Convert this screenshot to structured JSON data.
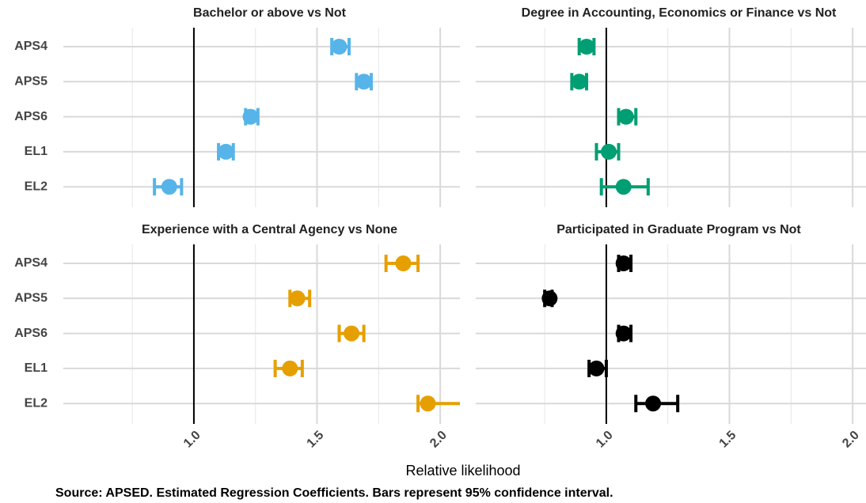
{
  "chart_data": [
    {
      "type": "dotwhisker",
      "title": "Bachelor or above vs Not",
      "color": "#56B4E9",
      "categories": [
        "APS4",
        "APS5",
        "APS6",
        "EL1",
        "EL2"
      ],
      "values": [
        1.59,
        1.69,
        1.23,
        1.13,
        0.9
      ],
      "lower": [
        1.56,
        1.66,
        1.21,
        1.1,
        0.84
      ],
      "upper": [
        1.63,
        1.72,
        1.26,
        1.16,
        0.95
      ],
      "reference": 1,
      "xlim": [
        0.47,
        2.08
      ],
      "xticks": [
        {
          "value": 1,
          "label": "1.0"
        },
        1.5,
        {
          "value": 2,
          "label": "2.0"
        }
      ],
      "grid": true
    },
    {
      "type": "dotwhisker",
      "title": "Degree in Accounting, Economics or Finance vs Not",
      "color": "#009E73",
      "categories": [
        "APS4",
        "APS5",
        "APS6",
        "EL1",
        "EL2"
      ],
      "values": [
        0.92,
        0.89,
        1.08,
        1.01,
        1.07
      ],
      "lower": [
        0.89,
        0.86,
        1.05,
        0.96,
        0.98
      ],
      "upper": [
        0.95,
        0.92,
        1.12,
        1.05,
        1.17
      ],
      "reference": 1,
      "xlim": [
        0.47,
        2.08
      ],
      "xticks": [
        {
          "value": 1,
          "label": "1.0"
        },
        1.5,
        {
          "value": 2,
          "label": "2.0"
        }
      ],
      "grid": true
    },
    {
      "type": "dotwhisker",
      "title": "Experience with a Central Agency vs None",
      "color": "#E69F00",
      "categories": [
        "APS4",
        "APS5",
        "APS6",
        "EL1",
        "EL2"
      ],
      "values": [
        1.85,
        1.42,
        1.64,
        1.39,
        1.95
      ],
      "lower": [
        1.78,
        1.39,
        1.59,
        1.33,
        1.91
      ],
      "upper": [
        1.91,
        1.47,
        1.69,
        1.44,
        2.1
      ],
      "reference": 1,
      "xlim": [
        0.47,
        2.08
      ],
      "xticks": [
        {
          "value": 1,
          "label": "1.0"
        },
        1.5,
        {
          "value": 2,
          "label": "2.0"
        }
      ],
      "grid": true
    },
    {
      "type": "dotwhisker",
      "title": "Participated in Graduate Program vs Not",
      "color": "#000000",
      "categories": [
        "APS4",
        "APS5",
        "APS6",
        "EL1",
        "EL2"
      ],
      "values": [
        1.07,
        0.77,
        1.07,
        0.96,
        1.19
      ],
      "lower": [
        1.05,
        0.75,
        1.05,
        0.93,
        1.12
      ],
      "upper": [
        1.1,
        0.78,
        1.1,
        1.0,
        1.29
      ],
      "reference": 1,
      "xlim": [
        0.47,
        2.08
      ],
      "xticks": [
        {
          "value": 1,
          "label": "1.0"
        },
        1.5,
        {
          "value": 2,
          "label": "2.0"
        }
      ],
      "grid": true
    }
  ],
  "x_axis_label": "Relative likelihood",
  "caption": "Source: APSED. Estimated Regression Coefficients. Bars represent 95% confidence interval."
}
